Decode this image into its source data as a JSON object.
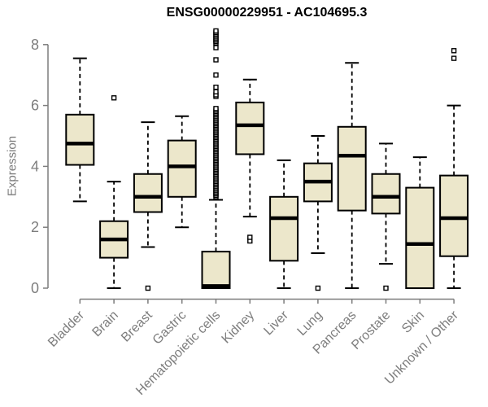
{
  "title": "ENSG00000229951 - AC104695.3",
  "chart_data": {
    "type": "boxplot",
    "title": "ENSG00000229951 - AC104695.3",
    "xlabel": "",
    "ylabel": "Expression",
    "ylim": [
      0,
      8
    ],
    "yticks": [
      0,
      2,
      4,
      6,
      8
    ],
    "grid": false,
    "legend": "none",
    "box_fill": "#ece7cb",
    "box_border": "#000000",
    "median_color": "#000000",
    "axis_color": "#7d7d7d",
    "categories": [
      "Bladder",
      "Brain",
      "Breast",
      "Gastric",
      "Hematopoietic cells",
      "Kidney",
      "Liver",
      "Lung",
      "Pancreas",
      "Prostate",
      "Skin",
      "Unknown / Other"
    ],
    "series": [
      {
        "name": "Bladder",
        "low": 2.85,
        "q1": 4.05,
        "median": 4.75,
        "q3": 5.7,
        "high": 7.55,
        "outliers": []
      },
      {
        "name": "Brain",
        "low": 0.0,
        "q1": 1.0,
        "median": 1.6,
        "q3": 2.2,
        "high": 3.5,
        "outliers": [
          6.25
        ]
      },
      {
        "name": "Breast",
        "low": 1.35,
        "q1": 2.5,
        "median": 3.0,
        "q3": 3.75,
        "high": 5.45,
        "outliers": [
          0.0
        ]
      },
      {
        "name": "Gastric",
        "low": 2.0,
        "q1": 3.0,
        "median": 4.0,
        "q3": 4.85,
        "high": 5.65,
        "outliers": []
      },
      {
        "name": "Hematopoietic cells",
        "low": 0.0,
        "q1": 0.0,
        "median": 0.07,
        "q3": 1.2,
        "high": 2.9,
        "outliers": [
          3.0,
          3.05,
          3.1,
          3.15,
          3.2,
          3.25,
          3.3,
          3.35,
          3.4,
          3.45,
          3.5,
          3.55,
          3.6,
          3.65,
          3.7,
          3.75,
          3.8,
          3.85,
          3.9,
          3.95,
          4.0,
          4.05,
          4.1,
          4.15,
          4.2,
          4.25,
          4.3,
          4.35,
          4.4,
          4.45,
          4.5,
          4.55,
          4.6,
          4.65,
          4.7,
          4.75,
          4.8,
          4.85,
          4.9,
          4.95,
          5.0,
          5.05,
          5.1,
          5.15,
          5.2,
          5.25,
          5.3,
          5.35,
          5.4,
          5.45,
          5.5,
          5.55,
          5.6,
          5.65,
          5.7,
          5.75,
          5.8,
          5.85,
          5.9,
          6.3,
          6.35,
          6.45,
          6.6,
          7.0,
          7.5,
          7.9,
          8.05,
          8.1,
          8.15,
          8.2,
          8.25,
          8.3,
          8.35,
          8.4,
          8.45
        ]
      },
      {
        "name": "Kidney",
        "low": 2.35,
        "q1": 4.4,
        "median": 5.35,
        "q3": 6.1,
        "high": 6.85,
        "outliers": [
          1.55,
          1.67
        ]
      },
      {
        "name": "Liver",
        "low": 0.0,
        "q1": 0.9,
        "median": 2.3,
        "q3": 3.0,
        "high": 4.2,
        "outliers": []
      },
      {
        "name": "Lung",
        "low": 1.15,
        "q1": 2.85,
        "median": 3.5,
        "q3": 4.1,
        "high": 5.0,
        "outliers": [
          0.0
        ]
      },
      {
        "name": "Pancreas",
        "low": 0.0,
        "q1": 2.55,
        "median": 4.35,
        "q3": 5.3,
        "high": 7.4,
        "outliers": []
      },
      {
        "name": "Prostate",
        "low": 0.8,
        "q1": 2.45,
        "median": 3.0,
        "q3": 3.75,
        "high": 4.75,
        "outliers": [
          0.0
        ]
      },
      {
        "name": "Skin",
        "low": 0.0,
        "q1": 0.0,
        "median": 1.45,
        "q3": 3.3,
        "high": 4.3,
        "outliers": []
      },
      {
        "name": "Unknown / Other",
        "low": 0.0,
        "q1": 1.05,
        "median": 2.3,
        "q3": 3.7,
        "high": 6.0,
        "outliers": [
          7.55,
          7.8
        ]
      }
    ]
  }
}
